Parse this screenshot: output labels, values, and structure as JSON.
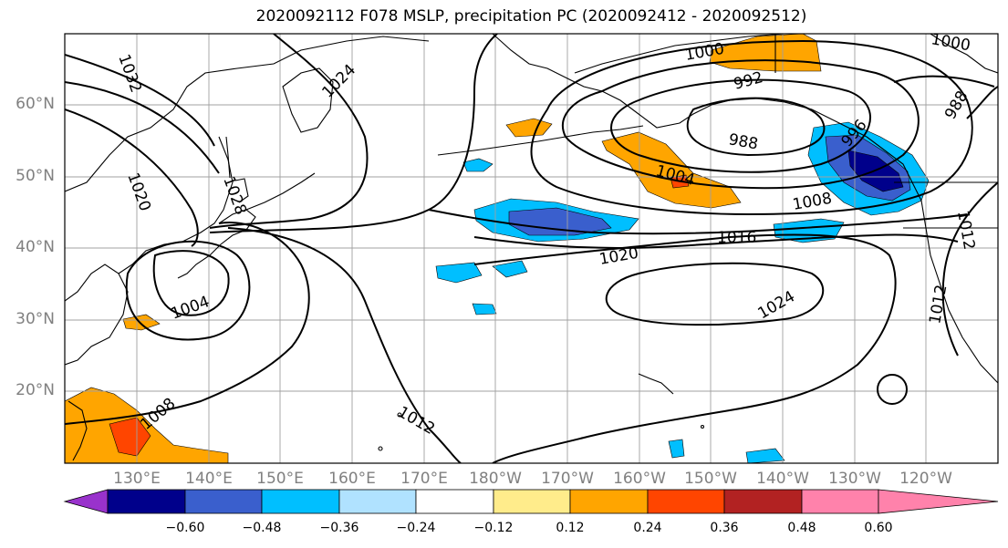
{
  "title": "2020092112 F078 MSLP, precipitation PC (2020092412 - 2020092512)",
  "lat_labels": [
    "60°N",
    "50°N",
    "40°N",
    "30°N",
    "20°N"
  ],
  "lon_labels": [
    "130°E",
    "140°E",
    "150°E",
    "160°E",
    "170°E",
    "180°W",
    "170°W",
    "160°W",
    "150°W",
    "140°W",
    "130°W",
    "120°W"
  ],
  "colorbar": {
    "ticks": [
      "−0.60",
      "−0.48",
      "−0.36",
      "−0.24",
      "−0.12",
      "0.12",
      "0.24",
      "0.36",
      "0.48",
      "0.60"
    ],
    "colors": [
      "#9932cc",
      "#00008b",
      "#3a5fcd",
      "#00bfff",
      "#b0e2ff",
      "#ffffff",
      "#ffec8b",
      "#ffa500",
      "#ff4500",
      "#b22222",
      "#ff82ab"
    ]
  },
  "contour_labels": [
    "1032",
    "1024",
    "1020",
    "1028",
    "1004",
    "1008",
    "1012",
    "1000",
    "992",
    "988",
    "1004",
    "1008",
    "1016",
    "1020",
    "1024",
    "1000",
    "988",
    "996",
    "1012",
    "1012"
  ],
  "colors": {
    "land_outline": "#000000",
    "grid": "#a0a0a0",
    "isobar": "#000000"
  }
}
